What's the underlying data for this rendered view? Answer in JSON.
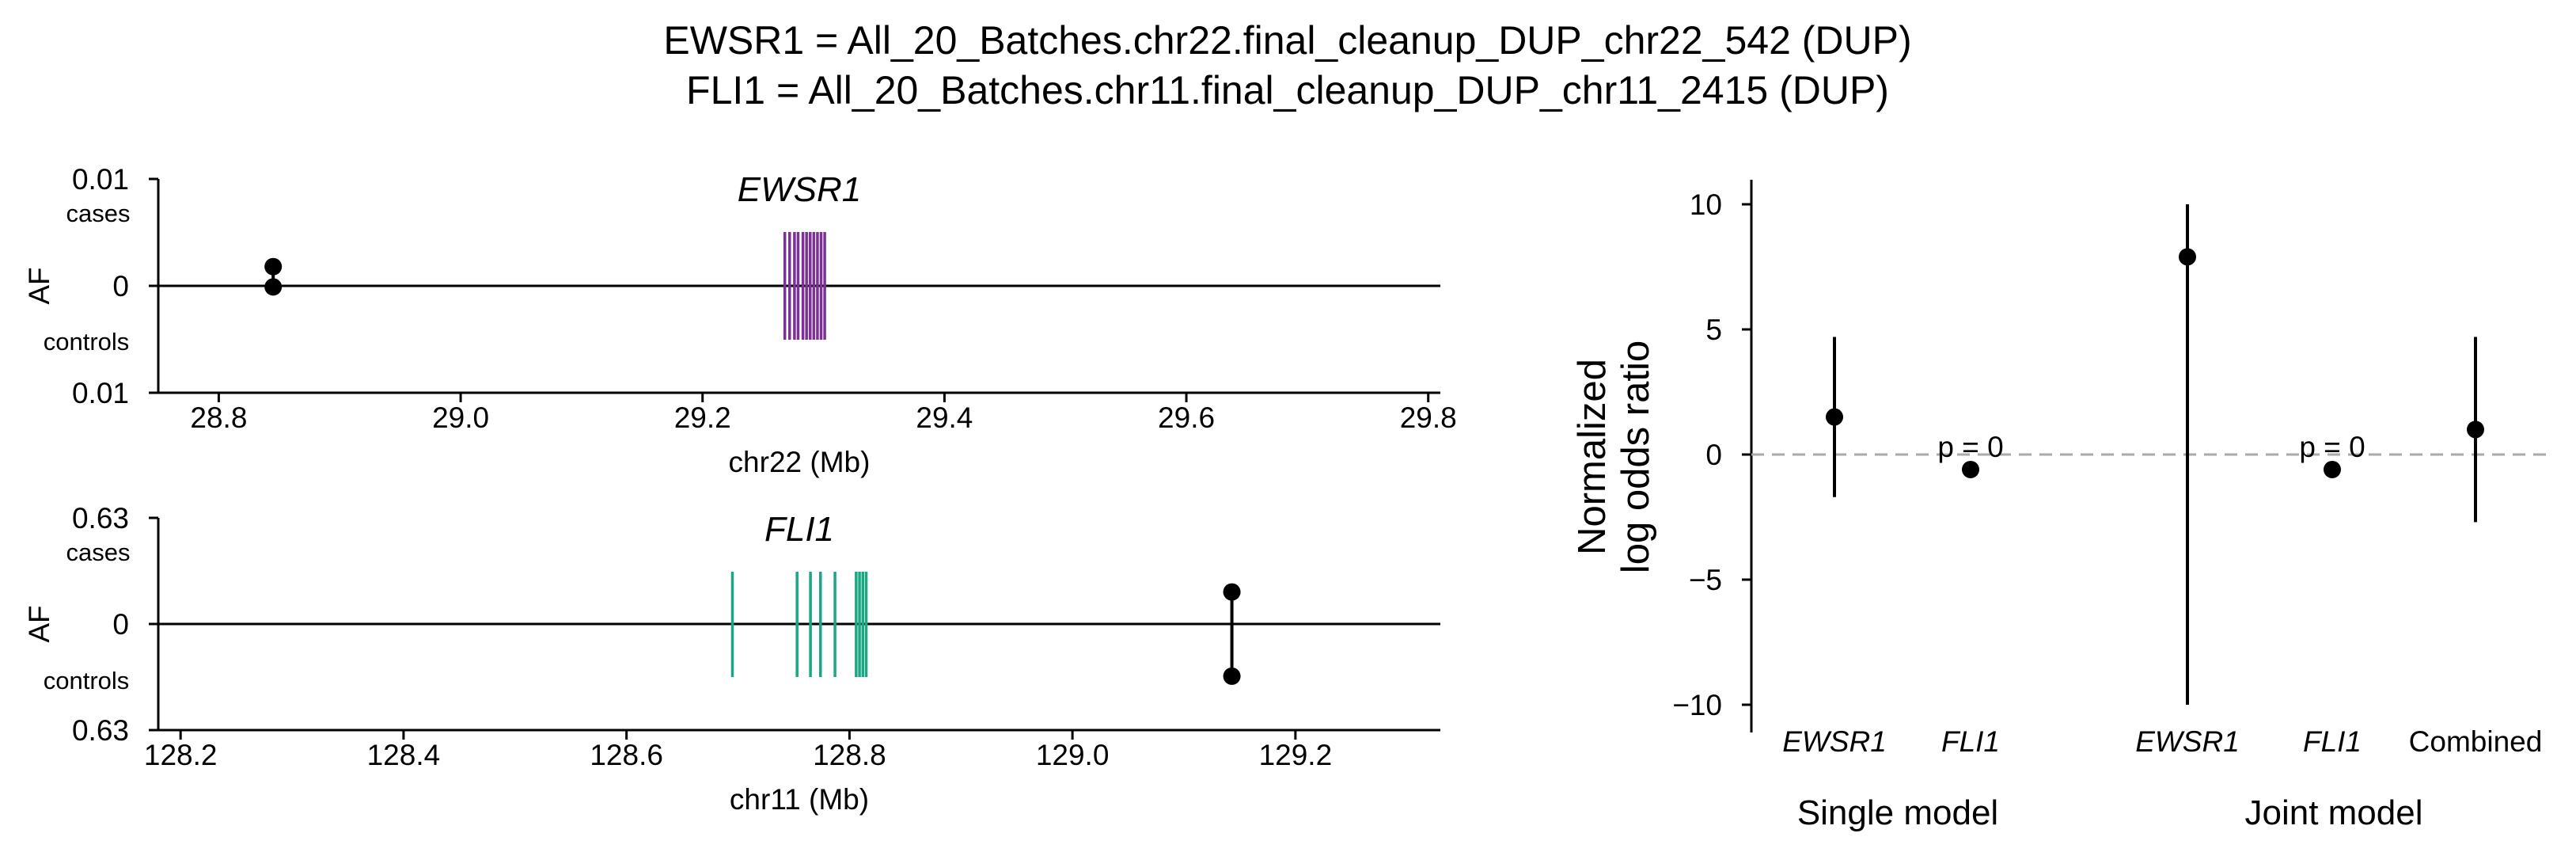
{
  "title": {
    "line1": "EWSR1 = All_20_Batches.chr22.final_cleanup_DUP_chr22_542 (DUP)",
    "line2": "FLI1 = All_20_Batches.chr11.final_cleanup_DUP_chr11_2415 (DUP)"
  },
  "chart_data": [
    {
      "type": "scatter",
      "panel": "EWSR1 locus",
      "gene_label": "EWSR1",
      "gene_color": "#7B3294",
      "xlabel": "chr22 (Mb)",
      "ylabel": "AF",
      "xlim": [
        28.75,
        29.81
      ],
      "x_ticks": [
        "28.8",
        "29.0",
        "29.2",
        "29.4",
        "29.6",
        "29.8"
      ],
      "y_tick_top": "0.01",
      "y_tick_zero": "0",
      "y_tick_bottom": "0.01",
      "cases_label": "cases",
      "controls_label": "controls",
      "af_max": 0.01,
      "gene_exons_mb": [
        29.268,
        29.272,
        29.276,
        29.279,
        29.283,
        29.286,
        29.289,
        29.292,
        29.295,
        29.298,
        29.301
      ],
      "variants": [
        {
          "x": 28.845,
          "af_cases": 0.0018,
          "af_controls": 0.0001
        }
      ]
    },
    {
      "type": "scatter",
      "panel": "FLI1 locus",
      "gene_label": "FLI1",
      "gene_color": "#1BA784",
      "xlabel": "chr11 (Mb)",
      "ylabel": "AF",
      "xlim": [
        128.18,
        129.33
      ],
      "x_ticks": [
        "128.2",
        "128.4",
        "128.6",
        "128.8",
        "129.0",
        "129.2"
      ],
      "y_tick_top": "0.63",
      "y_tick_zero": "0",
      "y_tick_bottom": "0.63",
      "cases_label": "cases",
      "controls_label": "controls",
      "af_max": 0.63,
      "gene_exons_mb": [
        128.695,
        128.753,
        128.765,
        128.774,
        128.787,
        128.806,
        128.809,
        128.812,
        128.815
      ],
      "variants": [
        {
          "x": 129.143,
          "af_cases": 0.19,
          "af_controls": 0.31
        }
      ]
    },
    {
      "type": "scatter",
      "panel": "odds ratios",
      "ylabel_line1": "Normalized",
      "ylabel_line2": "log odds ratio",
      "ylim": [
        -10.9,
        11.0
      ],
      "y_ticks": [
        "10",
        "5",
        "0",
        "−5",
        "−10"
      ],
      "reference_line": 0,
      "categories": [
        "EWSR1",
        "FLI1",
        "EWSR1",
        "FLI1",
        "Combined"
      ],
      "groups": [
        {
          "name": "Single model",
          "categories": [
            0,
            1
          ]
        },
        {
          "name": "Joint model",
          "categories": [
            2,
            3,
            4
          ]
        }
      ],
      "points": [
        {
          "category": "EWSR1",
          "group": "Single model",
          "y": 1.5,
          "ci": [
            -1.7,
            4.7
          ]
        },
        {
          "category": "FLI1",
          "group": "Single model",
          "y": -0.6,
          "annotation": "p = 0"
        },
        {
          "category": "EWSR1",
          "group": "Joint model",
          "y": 7.9,
          "ci": [
            -10.0,
            10.0
          ]
        },
        {
          "category": "FLI1",
          "group": "Joint model",
          "y": -0.6,
          "annotation": "p = 0"
        },
        {
          "category": "Combined",
          "group": "Joint model",
          "y": 1.0,
          "ci": [
            -2.7,
            4.7
          ]
        }
      ]
    }
  ]
}
